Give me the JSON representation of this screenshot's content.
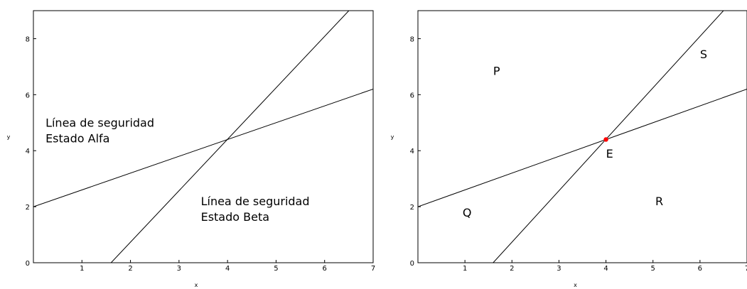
{
  "chart_data": [
    {
      "type": "line",
      "title": "",
      "xlabel": "x",
      "ylabel": "y",
      "xlim": [
        0,
        7
      ],
      "ylim": [
        0,
        9
      ],
      "x_ticks": [
        1,
        2,
        3,
        4,
        5,
        6,
        7
      ],
      "y_ticks": [
        0,
        2,
        4,
        6,
        8
      ],
      "grid": false,
      "series": [
        {
          "x": [
            0,
            7
          ],
          "y": [
            2.0,
            6.2
          ],
          "color": "#000000"
        },
        {
          "x": [
            1.6,
            6.5
          ],
          "y": [
            0,
            9.0
          ],
          "color": "#000000"
        }
      ],
      "points": [],
      "annotations": [
        {
          "lines": [
            "Línea de seguridad",
            "Estado Alfa"
          ],
          "x": 0.25,
          "y": 4.85
        },
        {
          "lines": [
            "Línea de seguridad",
            "Estado Beta"
          ],
          "x": 3.45,
          "y": 2.05
        }
      ]
    },
    {
      "type": "line",
      "title": "",
      "xlabel": "x",
      "ylabel": "y",
      "xlim": [
        0,
        7
      ],
      "ylim": [
        0,
        9
      ],
      "x_ticks": [
        1,
        2,
        3,
        4,
        5,
        6,
        7
      ],
      "y_ticks": [
        0,
        2,
        4,
        6,
        8
      ],
      "grid": false,
      "series": [
        {
          "x": [
            0,
            7
          ],
          "y": [
            2.0,
            6.2
          ],
          "color": "#000000"
        },
        {
          "x": [
            1.6,
            6.5
          ],
          "y": [
            0,
            9.0
          ],
          "color": "#000000"
        }
      ],
      "points": [
        {
          "x": 4.0,
          "y": 4.4,
          "color": "#ff0000"
        }
      ],
      "annotations": [
        {
          "lines": [
            "P"
          ],
          "x": 1.6,
          "y": 6.7
        },
        {
          "lines": [
            "S"
          ],
          "x": 6.0,
          "y": 7.3
        },
        {
          "lines": [
            "E"
          ],
          "x": 4.0,
          "y": 3.75
        },
        {
          "lines": [
            "Q"
          ],
          "x": 0.95,
          "y": 1.65
        },
        {
          "lines": [
            "R"
          ],
          "x": 5.05,
          "y": 2.05
        }
      ]
    }
  ]
}
